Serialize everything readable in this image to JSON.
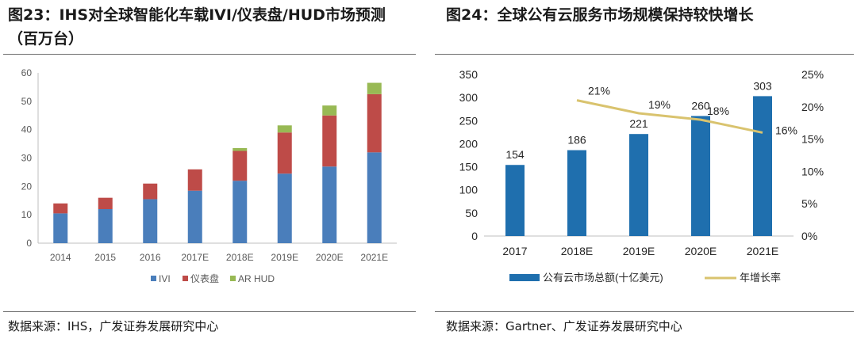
{
  "left": {
    "title": "图23：IHS对全球智能化车载IVI/仪表盘/HUD市场预测（百万台）",
    "source": "数据来源：IHS，广发证券发展研究中心"
  },
  "right": {
    "title": "图24：全球公有云服务市场规模保持较快增长",
    "source": "数据来源：Gartner、广发证券发展研究中心"
  },
  "colors": {
    "ivi": "#4a7ebb",
    "cluster": "#be4b48",
    "hud": "#98b954",
    "cloud_bar": "#1f6fae",
    "growth_line": "#d9c36e",
    "axis": "#bfbfbf",
    "text": "#595959",
    "dark_text": "#262626"
  },
  "chart_data": [
    {
      "type": "bar",
      "stacked": true,
      "title": "图23：IHS对全球智能化车载IVI/仪表盘/HUD市场预测（百万台）",
      "categories": [
        "2014",
        "2015",
        "2016",
        "2017E",
        "2018E",
        "2019E",
        "2020E",
        "2021E"
      ],
      "series": [
        {
          "name": "IVI",
          "values": [
            10.5,
            12,
            15.5,
            18.5,
            22,
            24.5,
            27,
            32
          ]
        },
        {
          "name": "仪表盘",
          "values": [
            3.5,
            4,
            5.5,
            7.5,
            10.5,
            14.5,
            18,
            20.5
          ]
        },
        {
          "name": "AR  HUD",
          "values": [
            0,
            0,
            0,
            0,
            1,
            2.5,
            3.5,
            4
          ]
        }
      ],
      "ylim": [
        0,
        60
      ],
      "yticks": [
        "0",
        "10",
        "20",
        "30",
        "40",
        "50",
        "60"
      ],
      "xlabel": "",
      "ylabel": "",
      "legend_position": "bottom"
    },
    {
      "type": "bar",
      "title": "图24：全球公有云服务市场规模保持较快增长",
      "categories": [
        "2017",
        "2018E",
        "2019E",
        "2020E",
        "2021E"
      ],
      "series": [
        {
          "name": "公有云市场总额(十亿美元)",
          "type": "bar",
          "axis": "left",
          "values": [
            154,
            186,
            221,
            260,
            303
          ],
          "labels": [
            "154",
            "186",
            "221",
            "260",
            "303"
          ]
        },
        {
          "name": "年增长率",
          "type": "line",
          "axis": "right",
          "values": [
            null,
            21,
            19,
            18,
            16
          ],
          "labels": [
            "",
            "21%",
            "19%",
            "18%",
            "16%"
          ]
        }
      ],
      "ylim": [
        0,
        350
      ],
      "yticks": [
        "0",
        "50",
        "100",
        "150",
        "200",
        "250",
        "300",
        "350"
      ],
      "y2lim": [
        0,
        25
      ],
      "y2ticks": [
        "0%",
        "5%",
        "10%",
        "15%",
        "20%",
        "25%"
      ],
      "xlabel": "",
      "ylabel": "",
      "legend_position": "bottom"
    }
  ]
}
